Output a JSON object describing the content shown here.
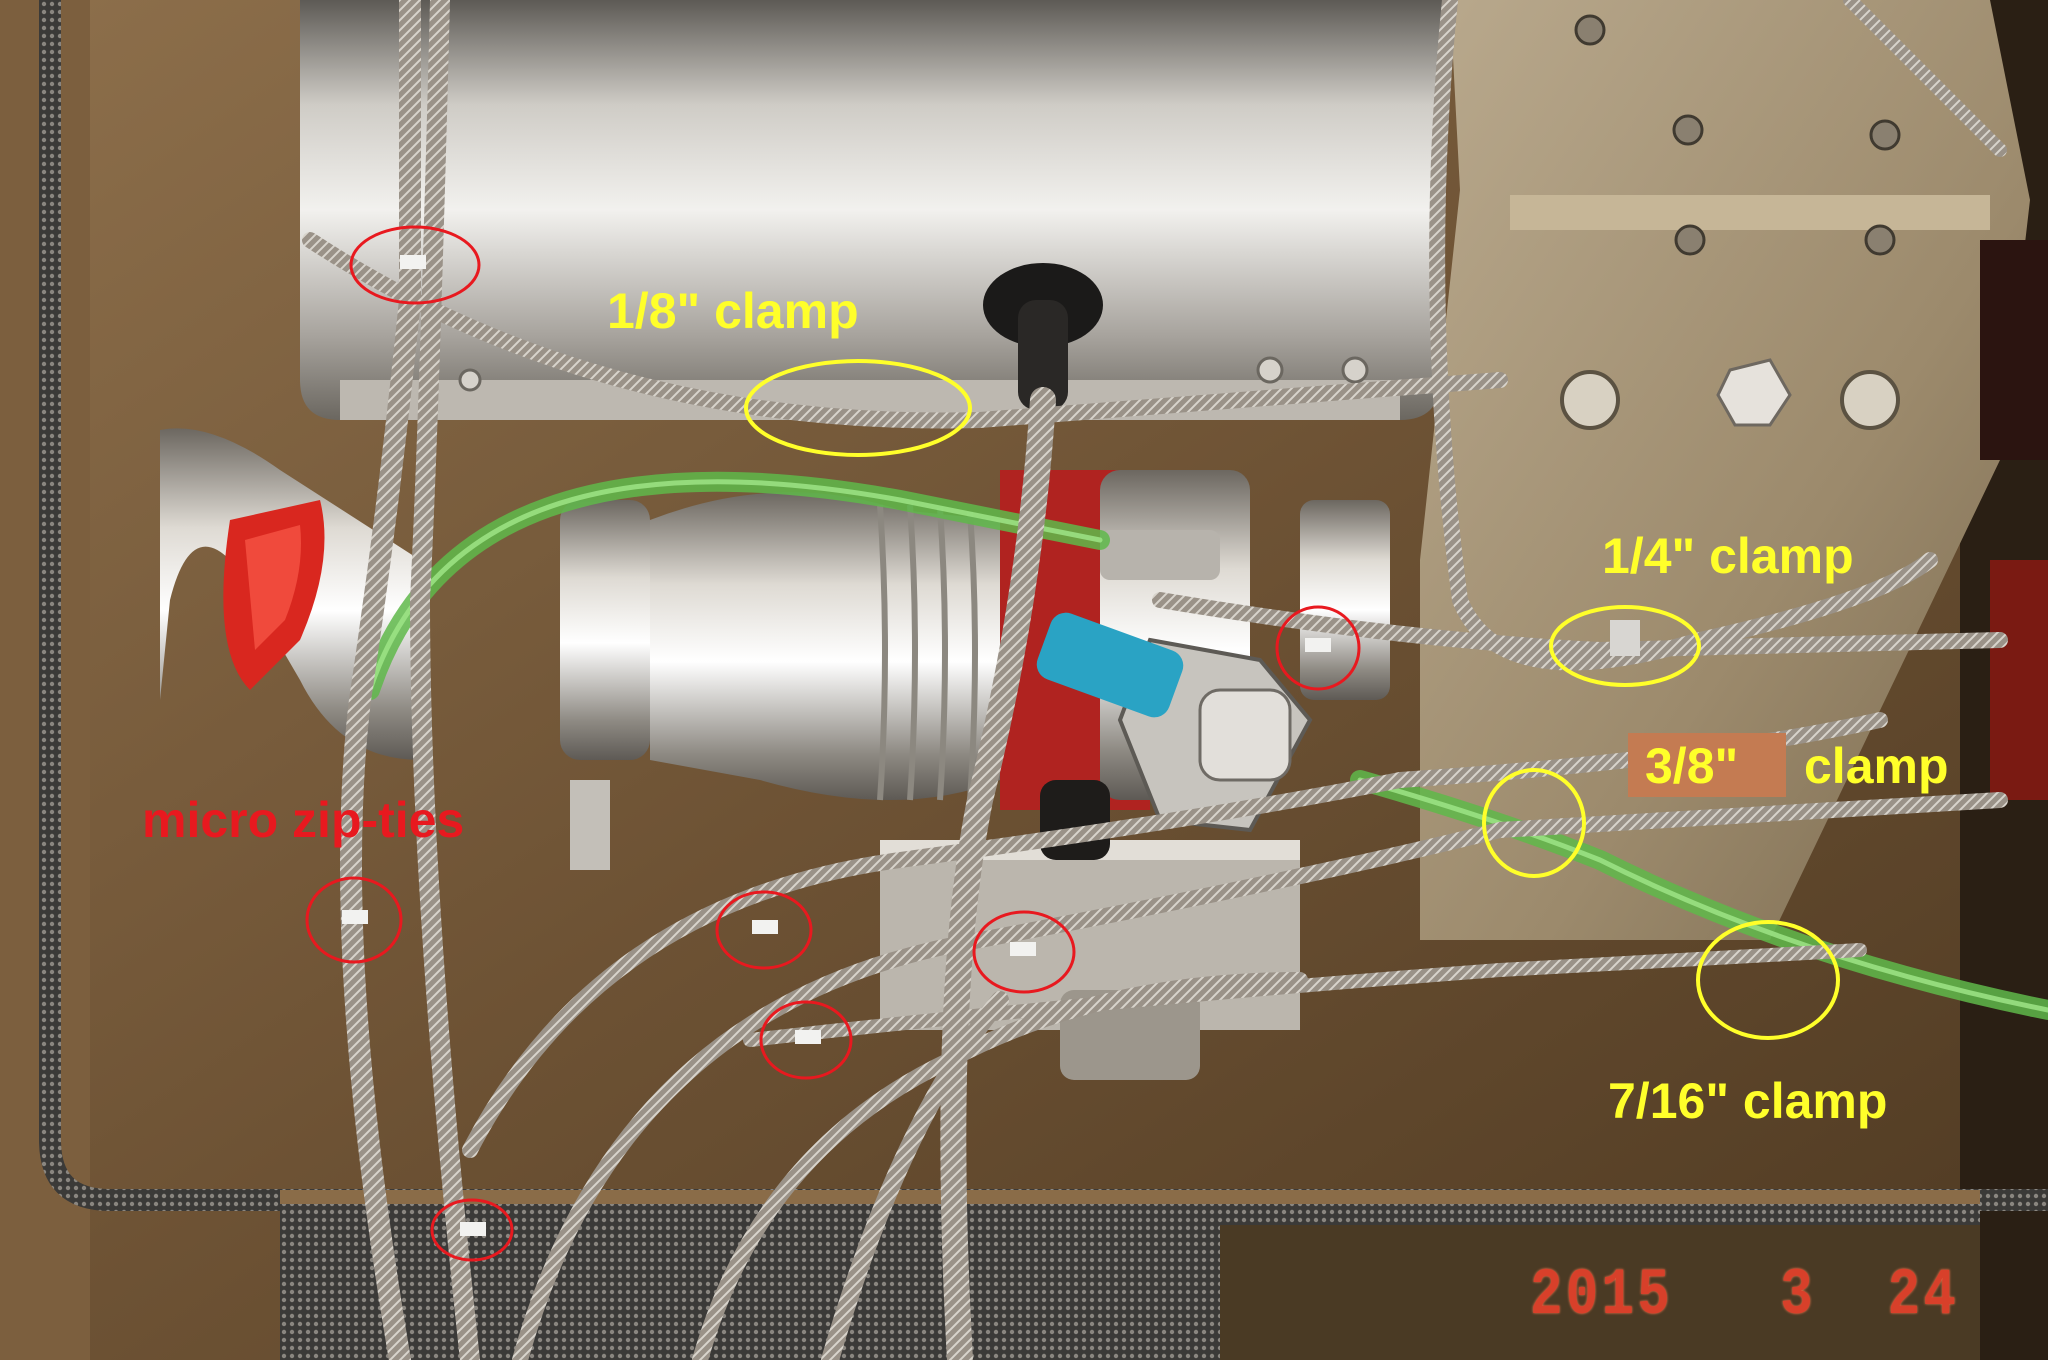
{
  "annotations": {
    "clamp_1_8": "1/8\" clamp",
    "clamp_1_4": "1/4\" clamp",
    "clamp_3_8_size": "3/8\"",
    "clamp_3_8_word": "clamp",
    "clamp_7_16": "7/16\" clamp",
    "micro_zip_ties": "micro zip-ties"
  },
  "date_stamp": "2015   3  24",
  "colors": {
    "label_yellow": "#ffff2a",
    "label_red": "#e8191f",
    "label_box": "#c47b52",
    "date_stamp": "#d8402a"
  }
}
